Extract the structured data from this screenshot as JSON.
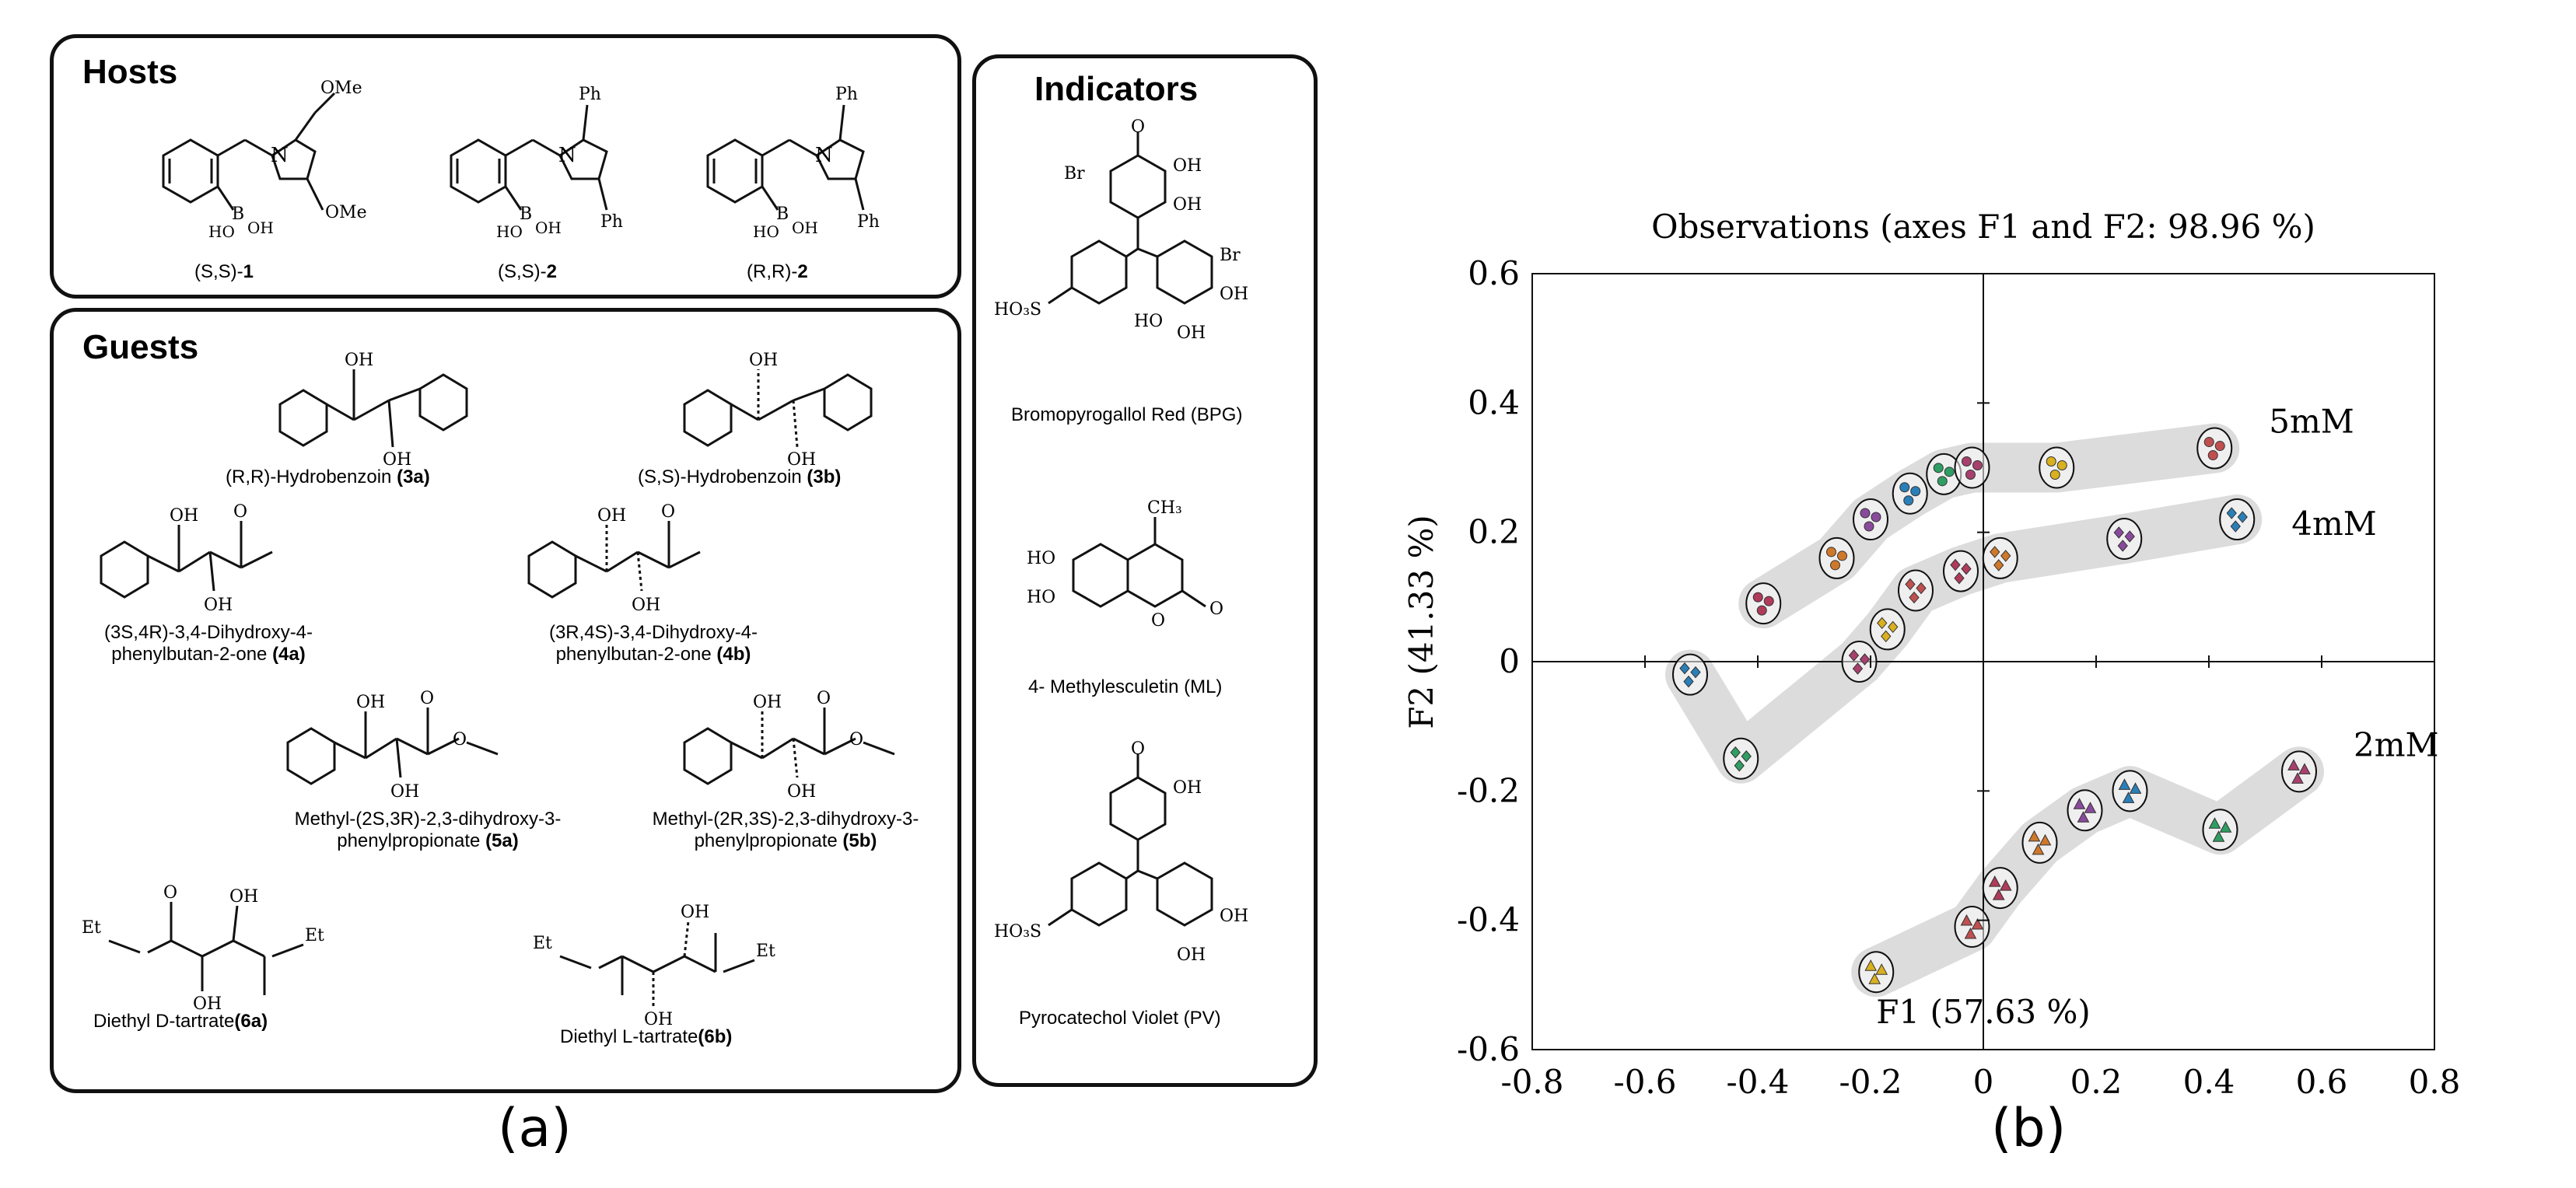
{
  "panel_a": {
    "label": "(a)",
    "hosts": {
      "title": "Hosts",
      "items": [
        {
          "name": "(S,S)-",
          "num": "1",
          "subst": "OMe"
        },
        {
          "name": "(S,S)-",
          "num": "2",
          "subst": "Ph"
        },
        {
          "name": "(R,R)-",
          "num": "2",
          "subst": "Ph"
        }
      ]
    },
    "guests": {
      "title": "Guests",
      "items": [
        {
          "name": "(R,R)-Hydrobenzoin ",
          "num": "(3a)"
        },
        {
          "name": "(S,S)-Hydrobenzoin ",
          "num": "(3b)"
        },
        {
          "name": "(3S,4R)-3,4-Dihydroxy-4-phenylbutan-2-one ",
          "num": "(4a)"
        },
        {
          "name": "(3R,4S)-3,4-Dihydroxy-4-phenylbutan-2-one ",
          "num": "(4b)"
        },
        {
          "name": "Methyl-(2S,3R)-2,3-dihydroxy-3-phenylpropionate ",
          "num": "(5a)"
        },
        {
          "name": "Methyl-(2R,3S)-2,3-dihydroxy-3-phenylpropionate ",
          "num": "(5b)"
        },
        {
          "name": "Diethyl D-tartrate",
          "num": "(6a)"
        },
        {
          "name": "Diethyl L-tartrate",
          "num": "(6b)"
        }
      ]
    },
    "indicators": {
      "title": "Indicators",
      "items": [
        {
          "name": "Bromopyrogallol Red (BPG)"
        },
        {
          "name": "4- Methylesculetin (ML)"
        },
        {
          "name": "Pyrocatechol Violet (PV)"
        }
      ]
    }
  },
  "panel_b": {
    "label": "(b)"
  },
  "chart_data": {
    "type": "scatter",
    "title": "Observations (axes F1 and F2: 98.96 %)",
    "xlabel": "F1 (57.63 %)",
    "ylabel": "F2 (41.33 %)",
    "xlim": [
      -0.8,
      0.8
    ],
    "ylim": [
      -0.6,
      0.6
    ],
    "xticks": [
      "-0.8",
      "-0.6",
      "-0.4",
      "-0.2",
      "0",
      "0.2",
      "0.4",
      "0.6",
      "0.8"
    ],
    "yticks": [
      "0.6",
      "0.4",
      "0.2",
      "0",
      "-0.2",
      "-0.4",
      "-0.6"
    ],
    "series": [
      {
        "name": "5mM",
        "marker": "circle",
        "clusters": [
          {
            "x": -0.39,
            "y": 0.09
          },
          {
            "x": -0.26,
            "y": 0.16
          },
          {
            "x": -0.2,
            "y": 0.22
          },
          {
            "x": -0.13,
            "y": 0.26
          },
          {
            "x": -0.07,
            "y": 0.29
          },
          {
            "x": -0.02,
            "y": 0.3
          },
          {
            "x": 0.13,
            "y": 0.3
          },
          {
            "x": 0.41,
            "y": 0.33
          }
        ]
      },
      {
        "name": "4mM",
        "marker": "diamond",
        "clusters": [
          {
            "x": -0.52,
            "y": -0.02
          },
          {
            "x": -0.43,
            "y": -0.15
          },
          {
            "x": -0.22,
            "y": 0.0
          },
          {
            "x": -0.17,
            "y": 0.05
          },
          {
            "x": -0.12,
            "y": 0.11
          },
          {
            "x": -0.04,
            "y": 0.14
          },
          {
            "x": 0.03,
            "y": 0.16
          },
          {
            "x": 0.25,
            "y": 0.19
          },
          {
            "x": 0.45,
            "y": 0.22
          }
        ]
      },
      {
        "name": "2mM",
        "marker": "triangle",
        "clusters": [
          {
            "x": -0.19,
            "y": -0.48
          },
          {
            "x": -0.02,
            "y": -0.41
          },
          {
            "x": 0.03,
            "y": -0.35
          },
          {
            "x": 0.1,
            "y": -0.28
          },
          {
            "x": 0.18,
            "y": -0.23
          },
          {
            "x": 0.26,
            "y": -0.2
          },
          {
            "x": 0.42,
            "y": -0.26
          },
          {
            "x": 0.56,
            "y": -0.17
          }
        ]
      }
    ],
    "colors": {
      "band": "#d6d6d6",
      "palette": [
        "#b03a5a",
        "#d0782a",
        "#8a4a9c",
        "#2a7fb8",
        "#2f9e62",
        "#a8406e",
        "#d9b020",
        "#c05050"
      ]
    }
  }
}
